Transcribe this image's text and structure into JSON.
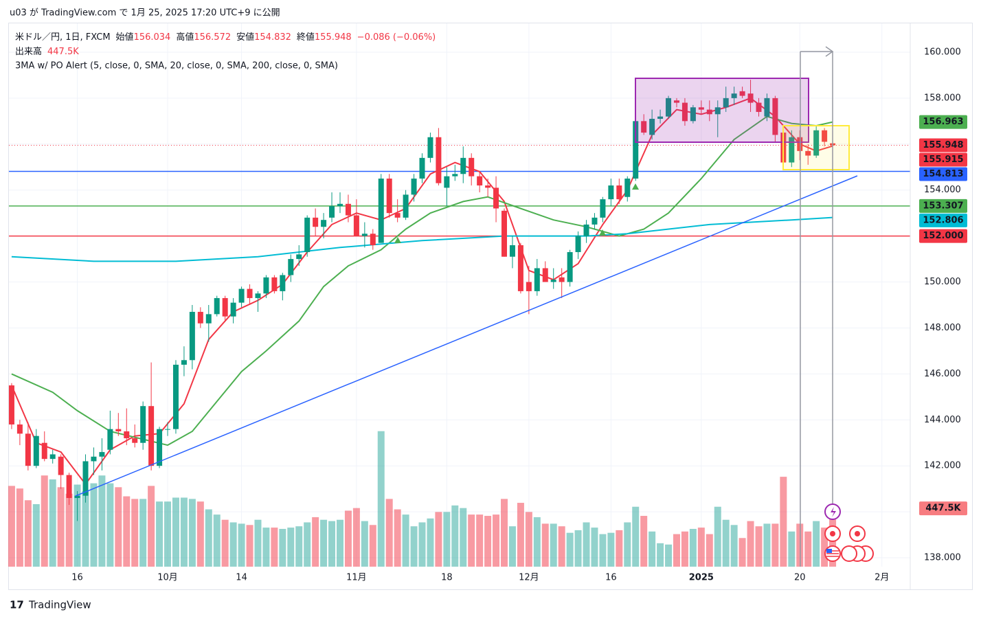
{
  "header": {
    "published": "u03 が TradingView.com で 1月 25, 2025 17:20 UTC+9 に公開"
  },
  "footer": {
    "brand": "TradingView"
  },
  "chart_data": {
    "type": "candlestick",
    "symbol": "米ドル／円, 1日, FXCM",
    "ohlc_labels": {
      "open": "始値",
      "high": "高値",
      "low": "安値",
      "close": "終値"
    },
    "change": "−0.086 (−0.06%)",
    "volume_title": "出来高",
    "indicator": "3MA w/ PO Alert (5, close, 0, SMA, 20, close, 0, SMA, 200, close, 0, SMA)",
    "up_color": "#089981",
    "down_color": "#f23645",
    "candles": [
      [
        145.5,
        145.6,
        143.6,
        143.8
      ],
      [
        143.8,
        144.0,
        142.9,
        143.4
      ],
      [
        143.4,
        143.9,
        141.8,
        142.0
      ],
      [
        142.0,
        143.6,
        141.9,
        143.3
      ],
      [
        143.0,
        143.5,
        142.2,
        142.3
      ],
      [
        142.3,
        142.7,
        142.1,
        142.5
      ],
      [
        142.4,
        142.5,
        141.0,
        141.6
      ],
      [
        141.6,
        141.7,
        140.3,
        140.6
      ],
      [
        140.6,
        140.9,
        139.6,
        140.7
      ],
      [
        140.7,
        142.5,
        140.4,
        142.2
      ],
      [
        142.2,
        142.8,
        141.6,
        142.4
      ],
      [
        142.4,
        143.2,
        141.8,
        142.6
      ],
      [
        142.7,
        144.4,
        142.5,
        143.6
      ],
      [
        143.6,
        144.3,
        143.3,
        143.5
      ],
      [
        143.5,
        144.5,
        142.9,
        143.2
      ],
      [
        143.2,
        143.8,
        142.8,
        143.0
      ],
      [
        143.0,
        144.8,
        142.7,
        144.6
      ],
      [
        144.6,
        146.5,
        141.8,
        142.0
      ],
      [
        142.0,
        143.7,
        141.9,
        143.6
      ],
      [
        143.6,
        143.9,
        143.3,
        143.6
      ],
      [
        143.6,
        146.6,
        143.4,
        146.4
      ],
      [
        146.4,
        147.2,
        145.9,
        146.6
      ],
      [
        146.6,
        149.0,
        146.2,
        148.7
      ],
      [
        148.7,
        148.9,
        148.0,
        148.2
      ],
      [
        148.2,
        149.0,
        147.4,
        148.6
      ],
      [
        148.6,
        149.4,
        148.5,
        149.3
      ],
      [
        149.3,
        149.4,
        148.3,
        148.5
      ],
      [
        148.5,
        149.3,
        148.2,
        149.1
      ],
      [
        149.1,
        149.8,
        148.9,
        149.7
      ],
      [
        149.7,
        149.9,
        149.0,
        149.3
      ],
      [
        149.3,
        149.6,
        148.7,
        149.5
      ],
      [
        149.5,
        150.3,
        149.3,
        150.2
      ],
      [
        150.2,
        150.3,
        149.5,
        149.6
      ],
      [
        149.6,
        150.4,
        149.2,
        150.3
      ],
      [
        150.3,
        151.2,
        150.0,
        151.0
      ],
      [
        151.0,
        151.6,
        150.7,
        151.2
      ],
      [
        151.3,
        152.9,
        151.1,
        152.8
      ],
      [
        152.8,
        153.2,
        152.0,
        152.4
      ],
      [
        152.4,
        153.0,
        151.9,
        152.7
      ],
      [
        152.8,
        153.9,
        152.6,
        153.3
      ],
      [
        153.3,
        153.9,
        153.0,
        153.4
      ],
      [
        153.4,
        153.8,
        152.6,
        152.9
      ],
      [
        152.9,
        153.6,
        152.0,
        152.0
      ],
      [
        152.0,
        152.6,
        151.5,
        152.1
      ],
      [
        152.1,
        152.3,
        151.4,
        151.6
      ],
      [
        151.7,
        154.7,
        151.7,
        154.5
      ],
      [
        154.5,
        154.7,
        152.8,
        153.0
      ],
      [
        153.0,
        153.6,
        152.6,
        152.8
      ],
      [
        152.8,
        154.0,
        152.7,
        153.8
      ],
      [
        153.8,
        154.7,
        153.5,
        154.5
      ],
      [
        154.5,
        155.6,
        154.3,
        155.4
      ],
      [
        155.4,
        156.5,
        155.2,
        156.3
      ],
      [
        156.3,
        156.7,
        154.2,
        154.3
      ],
      [
        154.1,
        155.0,
        153.3,
        154.6
      ],
      [
        154.6,
        155.1,
        154.4,
        154.7
      ],
      [
        154.7,
        155.9,
        154.3,
        155.4
      ],
      [
        155.4,
        155.6,
        154.2,
        154.6
      ],
      [
        154.6,
        154.8,
        153.9,
        154.2
      ],
      [
        154.2,
        154.5,
        153.7,
        154.1
      ],
      [
        154.1,
        154.6,
        152.6,
        153.2
      ],
      [
        153.1,
        153.2,
        151.1,
        151.1
      ],
      [
        151.1,
        152.0,
        150.6,
        151.6
      ],
      [
        151.6,
        151.7,
        149.5,
        149.6
      ],
      [
        150.0,
        150.7,
        148.6,
        149.6
      ],
      [
        149.6,
        151.0,
        149.4,
        150.6
      ],
      [
        150.6,
        150.9,
        150.0,
        150.0
      ],
      [
        150.0,
        150.6,
        149.7,
        150.1
      ],
      [
        150.2,
        150.6,
        149.3,
        150.0
      ],
      [
        150.0,
        151.4,
        149.8,
        151.3
      ],
      [
        151.3,
        152.2,
        151.0,
        152.0
      ],
      [
        152.0,
        152.7,
        151.7,
        152.5
      ],
      [
        152.5,
        153.0,
        152.3,
        152.8
      ],
      [
        152.8,
        153.7,
        152.6,
        153.6
      ],
      [
        153.6,
        154.5,
        153.3,
        154.2
      ],
      [
        154.2,
        154.5,
        153.4,
        153.6
      ],
      [
        153.7,
        154.6,
        153.5,
        154.5
      ],
      [
        154.5,
        157.3,
        154.4,
        157.0
      ],
      [
        157.0,
        157.3,
        156.4,
        156.5
      ],
      [
        156.4,
        157.5,
        156.2,
        157.1
      ],
      [
        157.1,
        157.5,
        156.9,
        157.2
      ],
      [
        157.2,
        158.1,
        157.1,
        158.0
      ],
      [
        157.9,
        158.0,
        157.6,
        157.8
      ],
      [
        157.8,
        158.0,
        156.8,
        157.0
      ],
      [
        157.0,
        157.7,
        156.9,
        157.6
      ],
      [
        157.6,
        157.9,
        157.3,
        157.5
      ],
      [
        157.5,
        157.9,
        157.0,
        157.3
      ],
      [
        157.3,
        157.9,
        156.3,
        157.6
      ],
      [
        157.6,
        158.5,
        157.4,
        158.0
      ],
      [
        158.0,
        158.5,
        157.7,
        158.2
      ],
      [
        158.3,
        158.5,
        158.0,
        158.1
      ],
      [
        158.2,
        158.8,
        157.4,
        157.8
      ],
      [
        157.8,
        158.0,
        157.2,
        157.4
      ],
      [
        157.2,
        158.2,
        157.0,
        158.0
      ],
      [
        158.0,
        158.1,
        156.1,
        156.4
      ],
      [
        156.5,
        156.8,
        155.1,
        155.2
      ],
      [
        155.2,
        156.6,
        155.0,
        156.3
      ],
      [
        156.3,
        156.6,
        155.3,
        155.7
      ],
      [
        155.7,
        156.0,
        155.1,
        155.5
      ],
      [
        155.5,
        156.8,
        155.4,
        156.6
      ],
      [
        156.6,
        156.7,
        155.9,
        156.1
      ],
      [
        156.034,
        156.572,
        154.832,
        155.948
      ]
    ],
    "volume": {
      "values": [
        620,
        600,
        510,
        480,
        700,
        670,
        610,
        560,
        630,
        580,
        640,
        700,
        640,
        610,
        540,
        520,
        520,
        620,
        500,
        500,
        530,
        530,
        520,
        500,
        440,
        400,
        360,
        340,
        330,
        320,
        360,
        300,
        300,
        290,
        300,
        310,
        340,
        380,
        360,
        350,
        360,
        430,
        450,
        350,
        320,
        1040,
        520,
        440,
        400,
        310,
        340,
        370,
        420,
        420,
        470,
        450,
        400,
        400,
        390,
        400,
        520,
        310,
        490,
        420,
        380,
        330,
        330,
        310,
        260,
        280,
        340,
        300,
        250,
        260,
        280,
        340,
        460,
        390,
        270,
        180,
        170,
        250,
        270,
        290,
        300,
        250,
        460,
        360,
        320,
        220,
        350,
        310,
        330,
        330,
        690,
        270,
        330,
        270,
        350,
        300,
        447.5
      ],
      "last_label": "447.5K",
      "ylim": [
        0,
        4170
      ],
      "up_color": "#26a69a80",
      "down_color": "#f2364580",
      "tag_color": "#f77c80"
    },
    "ma": [
      {
        "color": "#f23645",
        "x": [
          0,
          3,
          6,
          9,
          12,
          15,
          18,
          21,
          24,
          27,
          30,
          33,
          36,
          39,
          42,
          45,
          48,
          51,
          54,
          57,
          60,
          63,
          66,
          69,
          72,
          75,
          78,
          81,
          84,
          87,
          90,
          93,
          96,
          98,
          100
        ],
        "values": [
          145.5,
          143.0,
          142.6,
          141.2,
          142.7,
          143.3,
          143.4,
          144.7,
          147.5,
          148.7,
          149.2,
          149.9,
          151.3,
          152.5,
          153.0,
          152.7,
          153.2,
          154.7,
          155.2,
          154.8,
          153.5,
          150.5,
          150.1,
          150.8,
          152.5,
          154.0,
          156.4,
          157.5,
          157.3,
          157.6,
          158.0,
          157.2,
          156.0,
          155.7,
          155.915
        ]
      },
      {
        "color": "#4caf50",
        "x": [
          0,
          5,
          8,
          12,
          19,
          22,
          25,
          28,
          31,
          35,
          38,
          41,
          45,
          48,
          51,
          55,
          58,
          62,
          66,
          70,
          74,
          77,
          80,
          84,
          88,
          92,
          95,
          98,
          100
        ],
        "values": [
          146.0,
          145.2,
          144.4,
          143.5,
          142.9,
          143.5,
          144.8,
          146.1,
          147.0,
          148.3,
          149.8,
          150.7,
          151.4,
          152.3,
          153.0,
          153.5,
          153.7,
          153.2,
          152.7,
          152.4,
          152.0,
          152.3,
          153.0,
          154.5,
          156.2,
          157.2,
          156.9,
          156.8,
          156.963
        ]
      },
      {
        "color": "#00bcd4",
        "x": [
          0,
          10,
          20,
          30,
          40,
          50,
          60,
          70,
          75,
          85,
          95,
          100
        ],
        "values": [
          151.1,
          150.9,
          150.9,
          151.1,
          151.5,
          151.8,
          152.0,
          152.0,
          152.1,
          152.5,
          152.7,
          152.806
        ]
      }
    ],
    "hlines": [
      {
        "value": 154.813,
        "color": "#2962ff"
      },
      {
        "value": 153.307,
        "color": "#4caf50"
      },
      {
        "value": 152,
        "label": "152.000",
        "color": "#f23645"
      }
    ],
    "xlim": [
      -0.33,
      109.45
    ],
    "ylim": [
      137.612,
      161.254
    ],
    "yticks": [
      {
        "value": 138,
        "label": "138.000"
      },
      {
        "value": 140,
        "label": "140.000"
      },
      {
        "value": 142,
        "label": "142.000"
      },
      {
        "value": 144,
        "label": "144.000"
      },
      {
        "value": 146,
        "label": "146.000"
      },
      {
        "value": 148,
        "label": "148.000"
      },
      {
        "value": 150,
        "label": "150.000"
      },
      {
        "value": 152,
        "label": "152.000"
      },
      {
        "value": 154,
        "label": "154.000"
      },
      {
        "value": 156,
        "label": "156.000"
      },
      {
        "value": 158,
        "label": "158.000"
      },
      {
        "value": 160,
        "label": "160.000"
      }
    ],
    "xticks": [
      {
        "value": 8,
        "label": "16"
      },
      {
        "value": 19,
        "label": "10月"
      },
      {
        "value": 28,
        "label": "14"
      },
      {
        "value": 42,
        "label": "11月"
      },
      {
        "value": 53,
        "label": "18"
      },
      {
        "value": 63,
        "label": "12月"
      },
      {
        "value": 73,
        "label": "16"
      },
      {
        "value": 84,
        "label": "2025"
      },
      {
        "value": 96,
        "label": "20"
      },
      {
        "value": 106,
        "label": "2月"
      }
    ]
  }
}
